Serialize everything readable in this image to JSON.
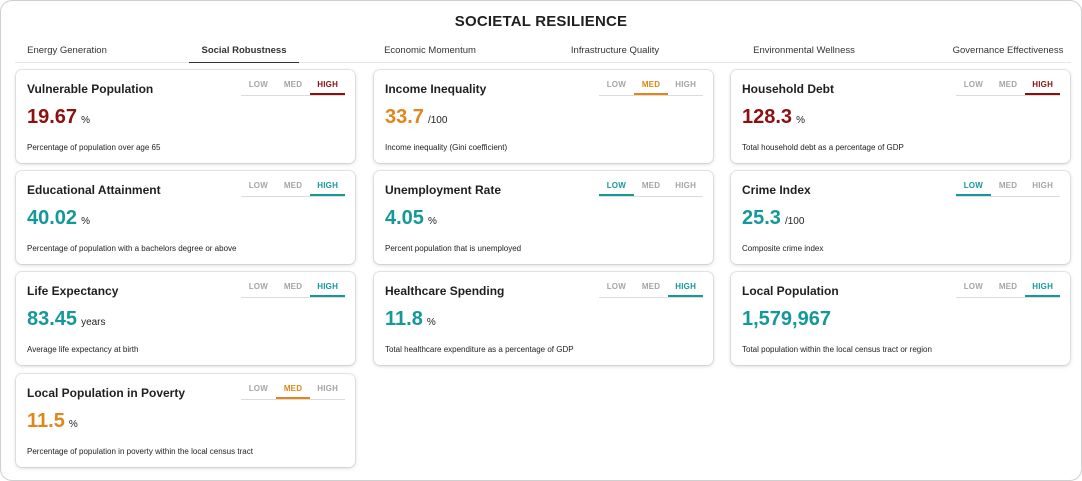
{
  "title": "SOCIETAL RESILIENCE",
  "colors": {
    "high_red": "#8b1111",
    "med_orange": "#e0861a",
    "teal": "#15989a"
  },
  "tabs": [
    {
      "label": "Energy Generation",
      "active": false
    },
    {
      "label": "Social Robustness",
      "active": true
    },
    {
      "label": "Economic Momentum",
      "active": false
    },
    {
      "label": "Infrastructure Quality",
      "active": false
    },
    {
      "label": "Environmental Wellness",
      "active": false
    },
    {
      "label": "Governance Effectiveness",
      "active": false
    }
  ],
  "level_labels": [
    "LOW",
    "MED",
    "HIGH"
  ],
  "cards": [
    {
      "title": "Vulnerable Population",
      "value": "19.67",
      "unit": "%",
      "description": "Percentage of population over age 65",
      "level": "HIGH",
      "color": "#8b1111"
    },
    {
      "title": "Income Inequality",
      "value": "33.7",
      "unit": "/100",
      "description": "Income inequality (Gini coefficient)",
      "level": "MED",
      "color": "#e0861a"
    },
    {
      "title": "Household Debt",
      "value": "128.3",
      "unit": "%",
      "description": "Total household debt as a percentage of GDP",
      "level": "HIGH",
      "color": "#8b1111"
    },
    {
      "title": "Educational Attainment",
      "value": "40.02",
      "unit": "%",
      "description": "Percentage of population with a bachelors degree or above",
      "level": "HIGH",
      "color": "#15989a"
    },
    {
      "title": "Unemployment Rate",
      "value": "4.05",
      "unit": "%",
      "description": "Percent population that is unemployed",
      "level": "LOW",
      "color": "#15989a"
    },
    {
      "title": "Crime Index",
      "value": "25.3",
      "unit": "/100",
      "description": "Composite crime index",
      "level": "LOW",
      "color": "#15989a"
    },
    {
      "title": "Life Expectancy",
      "value": "83.45",
      "unit": "years",
      "description": "Average life expectancy at birth",
      "level": "HIGH",
      "color": "#15989a"
    },
    {
      "title": "Healthcare Spending",
      "value": "11.8",
      "unit": "%",
      "description": "Total healthcare expenditure as a percentage of GDP",
      "level": "HIGH",
      "color": "#15989a"
    },
    {
      "title": "Local Population",
      "value": "1,579,967",
      "unit": "",
      "description": "Total population within the local census tract or region",
      "level": "HIGH",
      "color": "#15989a"
    },
    {
      "title": "Local Population in Poverty",
      "value": "11.5",
      "unit": "%",
      "description": "Percentage of population in poverty within the local census tract",
      "level": "MED",
      "color": "#e0861a"
    }
  ]
}
